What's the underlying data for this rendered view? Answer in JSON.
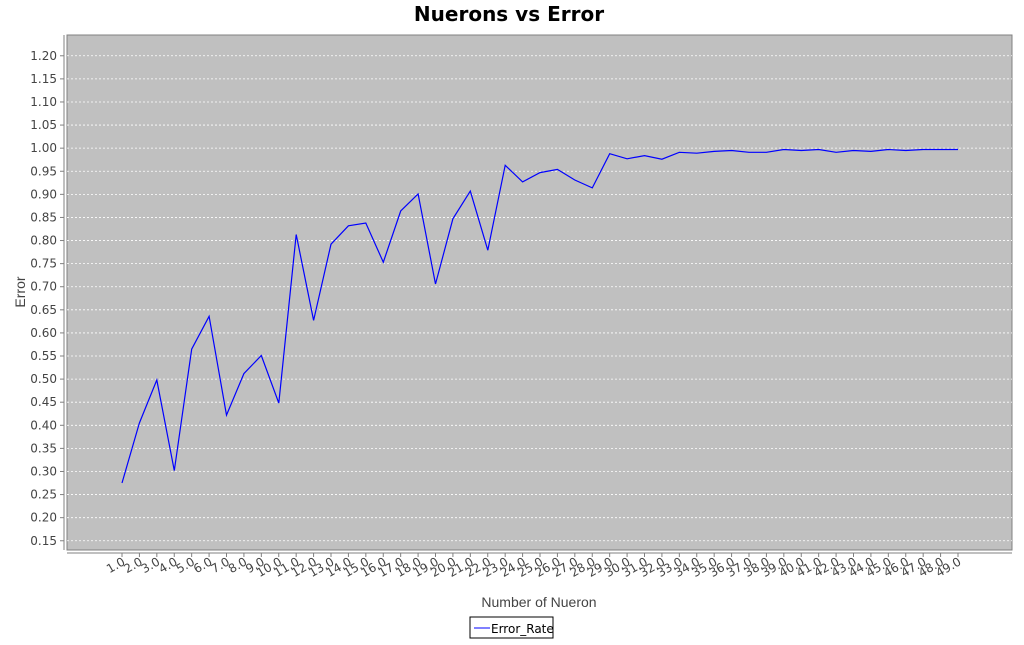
{
  "colors": {
    "background": "#ffffff",
    "plot_background": "#c0c0c0",
    "gridline": "#ffffff",
    "axis": "#808080",
    "series": "#0000ff"
  },
  "chart_data": {
    "type": "line",
    "title": "Nuerons vs Error",
    "xlabel": "Number of Nueron",
    "ylabel": "Error",
    "ylim": [
      0.13,
      1.245
    ],
    "yticks": [
      "0.15",
      "0.20",
      "0.25",
      "0.30",
      "0.35",
      "0.40",
      "0.45",
      "0.50",
      "0.55",
      "0.60",
      "0.65",
      "0.70",
      "0.75",
      "0.80",
      "0.85",
      "0.90",
      "0.95",
      "1.00",
      "1.05",
      "1.10",
      "1.15",
      "1.20"
    ],
    "categories": [
      "1.0",
      "2.0",
      "3.0",
      "4.0",
      "5.0",
      "6.0",
      "7.0",
      "8.0",
      "9.0",
      "10.0",
      "11.0",
      "12.0",
      "13.0",
      "14.0",
      "15.0",
      "16.0",
      "17.0",
      "18.0",
      "19.0",
      "20.0",
      "21.0",
      "22.0",
      "23.0",
      "24.0",
      "25.0",
      "26.0",
      "27.0",
      "28.0",
      "29.0",
      "30.0",
      "31.0",
      "32.0",
      "33.0",
      "34.0",
      "35.0",
      "36.0",
      "37.0",
      "38.0",
      "39.0",
      "40.0",
      "41.0",
      "42.0",
      "43.0",
      "44.0",
      "45.0",
      "46.0",
      "47.0",
      "48.0",
      "49.0"
    ],
    "grid": true,
    "legend": "bottom-center",
    "series": [
      {
        "name": "Error_Rate",
        "color": "#0000ff",
        "values": [
          0.275,
          0.405,
          0.498,
          0.302,
          0.565,
          0.636,
          0.422,
          0.512,
          0.551,
          0.448,
          0.813,
          0.627,
          0.792,
          0.832,
          0.838,
          0.753,
          0.864,
          0.901,
          0.706,
          0.847,
          0.907,
          0.779,
          0.963,
          0.927,
          0.947,
          0.954,
          0.931,
          0.914,
          0.988,
          0.977,
          0.984,
          0.976,
          0.991,
          0.989,
          0.993,
          0.995,
          0.991,
          0.991,
          0.997,
          0.995,
          0.997,
          0.991,
          0.995,
          0.993,
          0.997,
          0.995,
          0.997,
          0.997,
          0.997
        ]
      }
    ]
  }
}
